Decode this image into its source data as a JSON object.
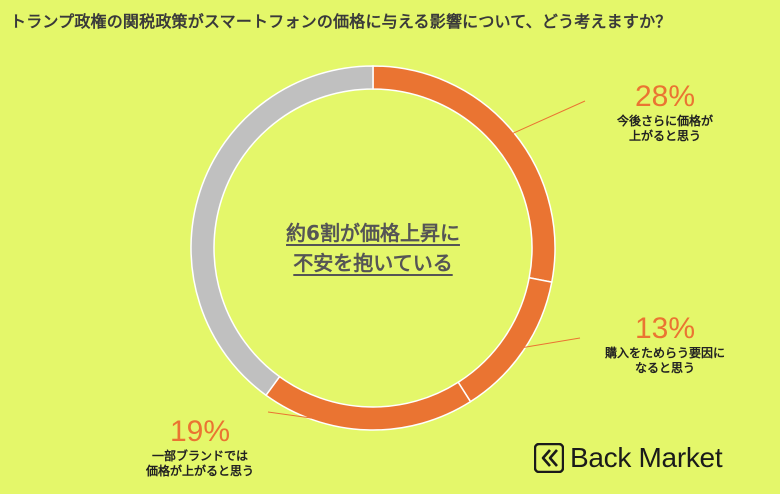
{
  "title": "トランプ政権の関税政策がスマートフォンの価格に与える影響について、どう考えますか？",
  "center_text": {
    "line1": "約6割が価格上昇に",
    "line2": "不安を抱いている"
  },
  "brand": {
    "name": "Back Market"
  },
  "colors": {
    "highlight": "#ea7432",
    "other": "#c0c0c0",
    "background": "#e4f76a"
  },
  "chart_data": {
    "type": "pie",
    "donut": true,
    "title": "トランプ政権の関税政策がスマートフォンの価格に与える影響について、どう考えますか？",
    "slices": [
      {
        "label_lines": [
          "今後さらに価格が",
          "上がると思う"
        ],
        "value": 28,
        "value_label": "28%",
        "color": "#ea7432"
      },
      {
        "label_lines": [
          "購入をためらう要因に",
          "なると思う"
        ],
        "value": 13,
        "value_label": "13%",
        "color": "#ea7432"
      },
      {
        "label_lines": [
          "一部ブランドでは",
          "価格が上がると思う"
        ],
        "value": 19,
        "value_label": "19%",
        "color": "#ea7432"
      },
      {
        "label_lines": [],
        "value": 40,
        "value_label": "",
        "color": "#c0c0c0"
      }
    ]
  }
}
